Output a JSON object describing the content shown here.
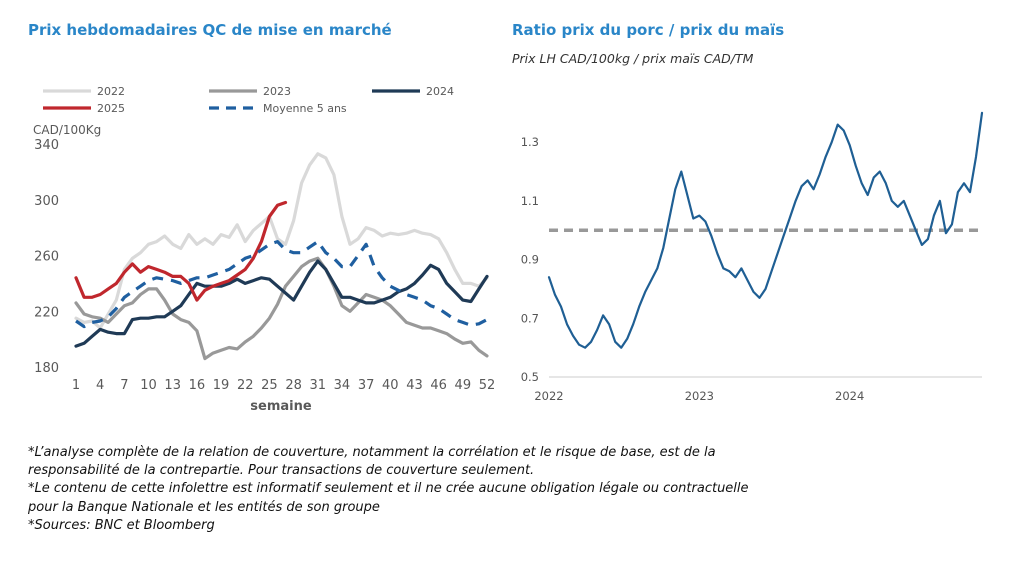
{
  "chart_data": [
    {
      "type": "line",
      "title": "Prix hebdomadaires QC de mise en marché",
      "ylabel": "CAD/100Kg",
      "xlabel": "semaine",
      "ylim": [
        180,
        340
      ],
      "yticks": [
        180,
        220,
        260,
        300,
        340
      ],
      "xticks": [
        1,
        4,
        7,
        10,
        13,
        16,
        19,
        22,
        25,
        28,
        31,
        34,
        37,
        40,
        43,
        46,
        49,
        52
      ],
      "xlim": [
        1,
        52
      ],
      "legend_position": "top",
      "series": [
        {
          "name": "2022",
          "color": "#d9d9d9",
          "style": "solid",
          "x": [
            1,
            2,
            3,
            4,
            5,
            6,
            7,
            8,
            9,
            10,
            11,
            12,
            13,
            14,
            15,
            16,
            17,
            18,
            19,
            20,
            21,
            22,
            23,
            24,
            25,
            26,
            27,
            28,
            29,
            30,
            31,
            32,
            33,
            34,
            35,
            36,
            37,
            38,
            39,
            40,
            41,
            42,
            43,
            44,
            45,
            46,
            47,
            48,
            49,
            50,
            51,
            52
          ],
          "y": [
            215,
            212,
            213,
            208,
            218,
            228,
            250,
            258,
            262,
            268,
            270,
            274,
            268,
            265,
            275,
            268,
            272,
            268,
            275,
            273,
            282,
            270,
            278,
            283,
            288,
            272,
            268,
            285,
            312,
            325,
            333,
            330,
            318,
            288,
            268,
            272,
            280,
            278,
            274,
            276,
            275,
            276,
            278,
            276,
            275,
            272,
            262,
            250,
            240,
            240,
            238,
            244
          ]
        },
        {
          "name": "2023",
          "color": "#999999",
          "style": "solid",
          "x": [
            1,
            2,
            3,
            4,
            5,
            6,
            7,
            8,
            9,
            10,
            11,
            12,
            13,
            14,
            15,
            16,
            17,
            18,
            19,
            20,
            21,
            22,
            23,
            24,
            25,
            26,
            27,
            28,
            29,
            30,
            31,
            32,
            33,
            34,
            35,
            36,
            37,
            38,
            39,
            40,
            41,
            42,
            43,
            44,
            45,
            46,
            47,
            48,
            49,
            50,
            51,
            52
          ],
          "y": [
            226,
            218,
            216,
            215,
            212,
            218,
            224,
            226,
            232,
            236,
            236,
            228,
            218,
            214,
            212,
            206,
            186,
            190,
            192,
            194,
            193,
            198,
            202,
            208,
            215,
            225,
            238,
            245,
            252,
            256,
            258,
            250,
            238,
            224,
            220,
            226,
            232,
            230,
            228,
            224,
            218,
            212,
            210,
            208,
            208,
            206,
            204,
            200,
            197,
            198,
            192,
            188
          ]
        },
        {
          "name": "2024",
          "color": "#1f3a56",
          "style": "solid",
          "x": [
            1,
            2,
            3,
            4,
            5,
            6,
            7,
            8,
            9,
            10,
            11,
            12,
            13,
            14,
            15,
            16,
            17,
            18,
            19,
            20,
            21,
            22,
            23,
            24,
            25,
            26,
            27,
            28,
            29,
            30,
            31,
            32,
            33,
            34,
            35,
            36,
            37,
            38,
            39,
            40,
            41,
            42,
            43,
            44,
            45,
            46,
            47,
            48,
            49,
            50,
            51,
            52
          ],
          "y": [
            195,
            197,
            202,
            207,
            205,
            204,
            204,
            214,
            215,
            215,
            216,
            216,
            220,
            224,
            232,
            240,
            238,
            238,
            238,
            240,
            243,
            240,
            242,
            244,
            243,
            238,
            233,
            228,
            238,
            248,
            256,
            250,
            240,
            230,
            230,
            228,
            226,
            226,
            228,
            230,
            234,
            236,
            240,
            246,
            253,
            250,
            240,
            234,
            228,
            227,
            236,
            245
          ]
        },
        {
          "name": "2025",
          "color": "#c0272d",
          "style": "solid",
          "x": [
            1,
            2,
            3,
            4,
            5,
            6,
            7,
            8,
            9,
            10,
            11,
            12,
            13,
            14,
            15,
            16,
            17,
            18,
            19,
            20,
            21,
            22,
            23,
            24,
            25,
            26,
            27
          ],
          "y": [
            244,
            230,
            230,
            232,
            236,
            240,
            248,
            254,
            248,
            252,
            250,
            248,
            245,
            245,
            240,
            228,
            235,
            238,
            240,
            242,
            246,
            250,
            258,
            270,
            288,
            296,
            298
          ]
        },
        {
          "name": "Moyenne 5 ans",
          "color": "#1f5fa0",
          "style": "dashed",
          "x": [
            1,
            2,
            3,
            4,
            5,
            6,
            7,
            8,
            9,
            10,
            11,
            12,
            13,
            14,
            15,
            16,
            17,
            18,
            19,
            20,
            21,
            22,
            23,
            24,
            25,
            26,
            27,
            28,
            29,
            30,
            31,
            32,
            33,
            34,
            35,
            36,
            37,
            38,
            39,
            40,
            41,
            42,
            43,
            44,
            45,
            46,
            47,
            48,
            49,
            50,
            51,
            52
          ],
          "y": [
            213,
            209,
            212,
            213,
            216,
            222,
            230,
            234,
            238,
            242,
            244,
            243,
            242,
            240,
            242,
            244,
            244,
            246,
            248,
            250,
            254,
            258,
            260,
            264,
            268,
            270,
            264,
            262,
            262,
            266,
            270,
            262,
            258,
            252,
            252,
            260,
            268,
            252,
            244,
            238,
            235,
            232,
            230,
            228,
            224,
            222,
            218,
            214,
            212,
            210,
            211,
            214
          ]
        }
      ]
    },
    {
      "type": "line",
      "title": "Ratio prix du porc / prix du maïs",
      "subtitle": "Prix LH CAD/100kg / prix maïs CAD/TM",
      "ylim": [
        0.5,
        1.42
      ],
      "yticks": [
        0.5,
        0.7,
        0.9,
        1.1,
        1.3
      ],
      "xlabels": [
        "2022",
        "2023",
        "2024"
      ],
      "xrange": [
        2022.0,
        2024.88
      ],
      "reference_line": {
        "y": 1.0,
        "style": "dashed",
        "color": "#999999"
      },
      "series": [
        {
          "color": "#1f5f94",
          "x": [
            2022.0,
            2022.04,
            2022.08,
            2022.12,
            2022.16,
            2022.2,
            2022.24,
            2022.28,
            2022.32,
            2022.36,
            2022.4,
            2022.44,
            2022.48,
            2022.52,
            2022.56,
            2022.6,
            2022.64,
            2022.68,
            2022.72,
            2022.76,
            2022.8,
            2022.84,
            2022.88,
            2022.92,
            2022.96,
            2023.0,
            2023.04,
            2023.08,
            2023.12,
            2023.16,
            2023.2,
            2023.24,
            2023.28,
            2023.32,
            2023.36,
            2023.4,
            2023.44,
            2023.48,
            2023.52,
            2023.56,
            2023.6,
            2023.64,
            2023.68,
            2023.72,
            2023.76,
            2023.8,
            2023.84,
            2023.88,
            2023.92,
            2023.96,
            2024.0,
            2024.04,
            2024.08,
            2024.12,
            2024.16,
            2024.2,
            2024.24,
            2024.28,
            2024.32,
            2024.36,
            2024.4,
            2024.44,
            2024.48,
            2024.52,
            2024.56,
            2024.6,
            2024.64,
            2024.68,
            2024.72,
            2024.76,
            2024.8,
            2024.84,
            2024.88
          ],
          "y": [
            0.84,
            0.78,
            0.74,
            0.68,
            0.64,
            0.61,
            0.6,
            0.62,
            0.66,
            0.71,
            0.68,
            0.62,
            0.6,
            0.63,
            0.68,
            0.74,
            0.79,
            0.83,
            0.87,
            0.94,
            1.04,
            1.14,
            1.2,
            1.12,
            1.04,
            1.05,
            1.03,
            0.98,
            0.92,
            0.87,
            0.86,
            0.84,
            0.87,
            0.83,
            0.79,
            0.77,
            0.8,
            0.86,
            0.92,
            0.98,
            1.04,
            1.1,
            1.15,
            1.17,
            1.14,
            1.19,
            1.25,
            1.3,
            1.36,
            1.34,
            1.29,
            1.22,
            1.16,
            1.12,
            1.18,
            1.2,
            1.16,
            1.1,
            1.08,
            1.1,
            1.05,
            1.0,
            0.95,
            0.97,
            1.05,
            1.1,
            0.99,
            1.02,
            1.13,
            1.16,
            1.13,
            1.25,
            1.4
          ]
        }
      ]
    }
  ],
  "footnotes": [
    "*L’analyse complète de la relation de couverture, notamment la corrélation et le risque de base, est de la",
    "responsabilité de la contrepartie. Pour transactions de couverture seulement.",
    "*Le contenu de cette infolettre est informatif seulement et il ne crée aucune obligation légale ou contractuelle",
    "pour la Banque Nationale et les entités de son groupe",
    "*Sources: BNC et Bloomberg"
  ]
}
